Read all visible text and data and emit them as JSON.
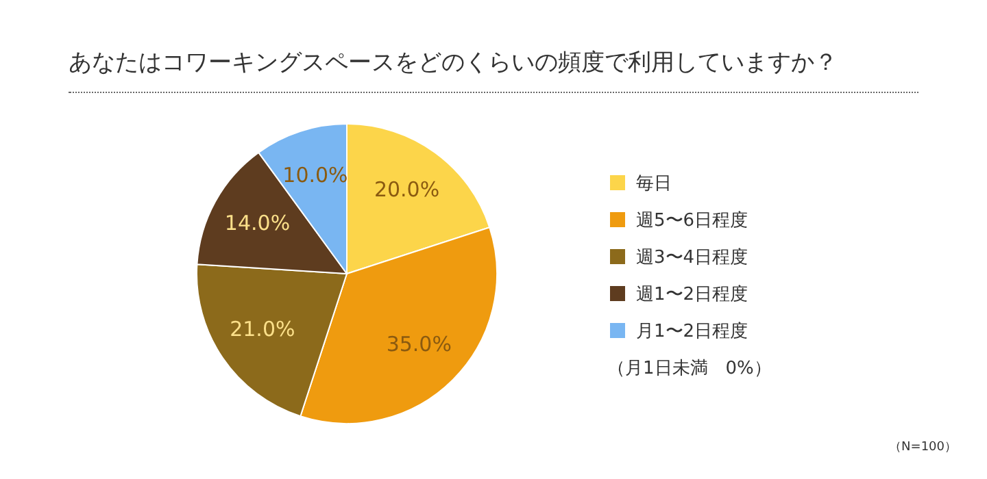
{
  "chart_data": {
    "type": "pie",
    "title": "あなたはコワーキングスペースをどのくらいの頻度で利用していますか？",
    "categories": [
      "毎日",
      "週5〜6日程度",
      "週3〜4日程度",
      "週1〜2日程度",
      "月1〜2日程度"
    ],
    "values": [
      20,
      35,
      21,
      14,
      10
    ],
    "colors": [
      "#fcd54a",
      "#ef9b0f",
      "#8c6a1b",
      "#5e3c1f",
      "#79b6f2"
    ],
    "value_labels": [
      "20.0%",
      "35.0%",
      "21.0%",
      "14.0%",
      "10.0%"
    ],
    "legend": "right",
    "annotations": [
      "（月1日未満　0%）",
      "（N=100）"
    ]
  }
}
